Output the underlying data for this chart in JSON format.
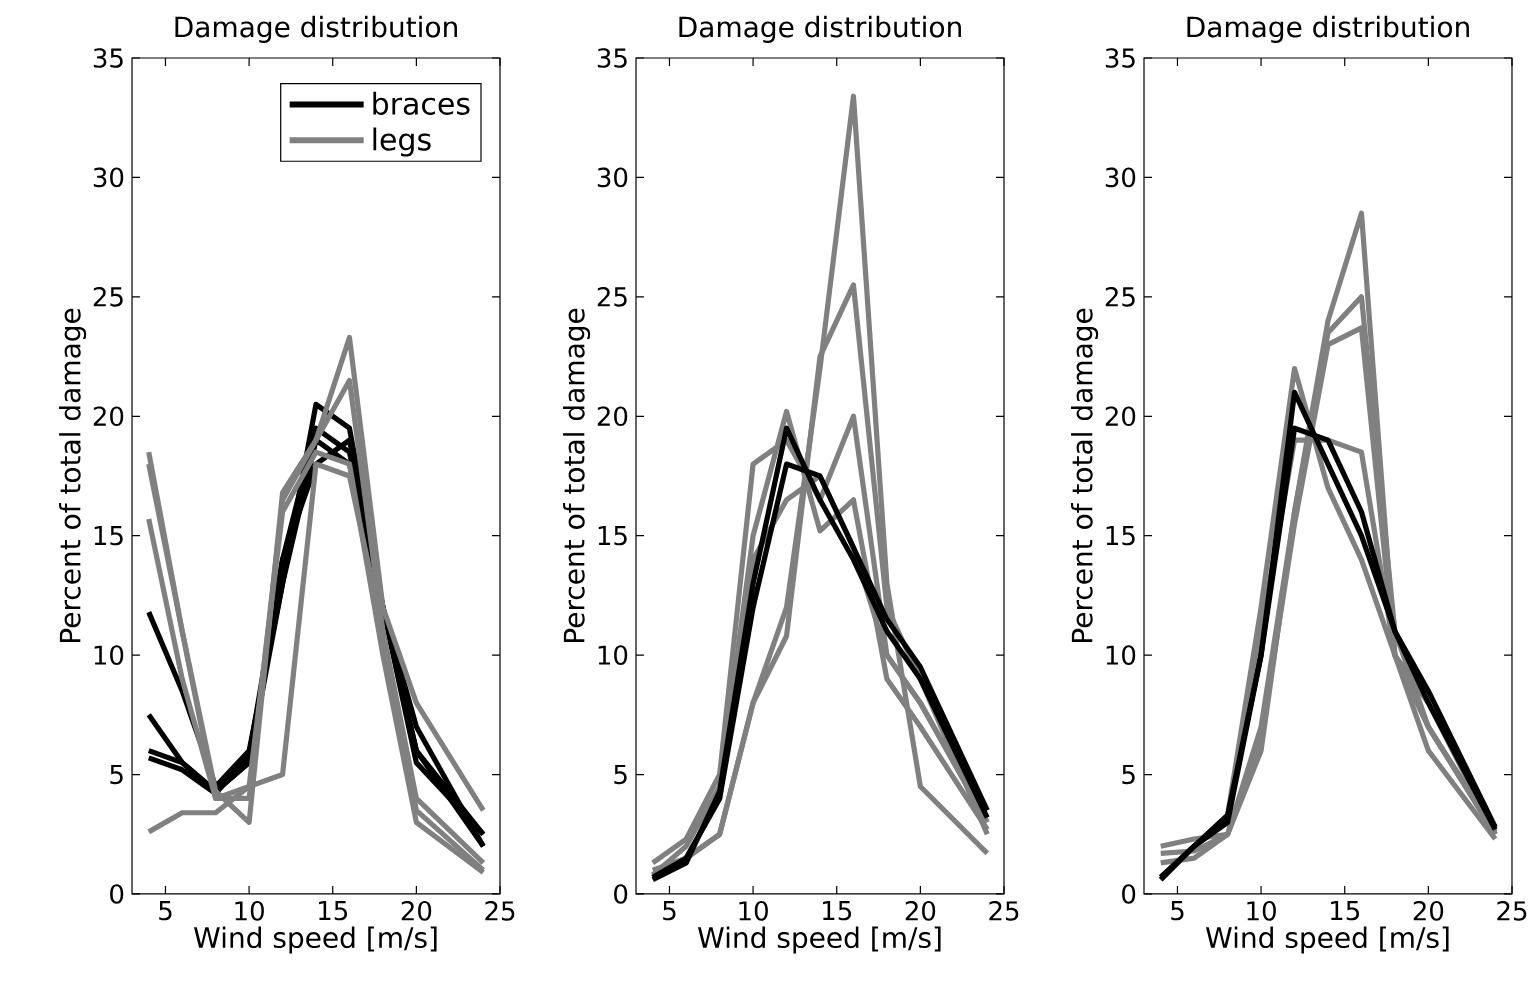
{
  "chart_data": [
    {
      "type": "line",
      "title": "Damage distribution",
      "xlabel": "Wind speed [m/s]",
      "ylabel": "Percent of total damage",
      "x": [
        4,
        6,
        8,
        10,
        12,
        14,
        16,
        18,
        20,
        24
      ],
      "xlim": [
        3,
        25
      ],
      "ylim": [
        0,
        35
      ],
      "xticks": [
        5,
        10,
        15,
        20,
        25
      ],
      "yticks": [
        0,
        5,
        10,
        15,
        20,
        25,
        30,
        35
      ],
      "legend": "top right",
      "grid": false,
      "marker": "none",
      "line_style": "solid",
      "series": [
        {
          "name": "braces",
          "color": "#000000",
          "values": [
            11.8,
            8.5,
            4.5,
            6,
            13,
            20.5,
            19.5,
            12,
            6,
            2
          ]
        },
        {
          "color": "#000000",
          "values": [
            7.5,
            5.5,
            4.3,
            5.5,
            13,
            19,
            18,
            12,
            5.5,
            2.5
          ]
        },
        {
          "color": "#000000",
          "values": [
            6,
            5.5,
            4.3,
            5.5,
            14,
            19.5,
            18.5,
            12,
            6,
            2.5
          ]
        },
        {
          "color": "#000000",
          "values": [
            5.7,
            5.2,
            4.2,
            5.8,
            14,
            18,
            19,
            12,
            7,
            2
          ]
        },
        {
          "name": "legs",
          "color": "#808080",
          "values": [
            18.5,
            11,
            4,
            4,
            16.5,
            19,
            23.3,
            12,
            8,
            3.5
          ]
        },
        {
          "color": "#808080",
          "values": [
            18,
            11,
            4.3,
            3,
            16.8,
            19,
            21.5,
            11,
            3.5,
            1
          ]
        },
        {
          "color": "#808080",
          "values": [
            15.7,
            9,
            4,
            4.5,
            16,
            18.5,
            18,
            10,
            3,
            0.9
          ]
        },
        {
          "color": "#808080",
          "values": [
            2.6,
            3.4,
            3.4,
            4.5,
            5,
            18,
            17.5,
            11,
            4,
            1.3
          ]
        }
      ]
    },
    {
      "type": "line",
      "title": "Damage distribution",
      "xlabel": "Wind speed [m/s]",
      "ylabel": "Percent of total damage",
      "x": [
        4,
        6,
        8,
        10,
        12,
        14,
        16,
        18,
        20,
        24
      ],
      "xlim": [
        3,
        25
      ],
      "ylim": [
        0,
        35
      ],
      "xticks": [
        5,
        10,
        15,
        20,
        25
      ],
      "yticks": [
        0,
        5,
        10,
        15,
        20,
        25,
        30,
        35
      ],
      "grid": false,
      "marker": "none",
      "line_style": "solid",
      "series": [
        {
          "color": "#808080",
          "values": [
            1,
            1.5,
            2.5,
            8,
            12,
            22,
            33.4,
            13,
            4.5,
            1.7
          ]
        },
        {
          "color": "#808080",
          "values": [
            0.8,
            1.5,
            2.5,
            8,
            10.8,
            22.5,
            25.5,
            12,
            9,
            2.5
          ]
        },
        {
          "color": "#808080",
          "values": [
            1.3,
            2.3,
            5,
            18,
            19,
            16.5,
            20,
            10,
            8,
            3
          ]
        },
        {
          "color": "#808080",
          "values": [
            0.8,
            2,
            4.5,
            15,
            20.2,
            15.2,
            16.5,
            9,
            7,
            2.7
          ]
        },
        {
          "color": "#808080",
          "values": [
            0.7,
            1.5,
            4,
            14,
            16.5,
            17.5,
            14.5,
            10,
            8,
            3
          ]
        },
        {
          "color": "#000000",
          "values": [
            0.7,
            1.5,
            4,
            12,
            18,
            17.5,
            14.5,
            11.5,
            9.5,
            3.5
          ]
        },
        {
          "color": "#000000",
          "values": [
            0.6,
            1.3,
            4.3,
            13,
            19.5,
            16.5,
            14,
            11,
            9,
            3.2
          ]
        }
      ]
    },
    {
      "type": "line",
      "title": "Damage distribution",
      "xlabel": "Wind speed [m/s]",
      "ylabel": "Percent of total damage",
      "x": [
        4,
        6,
        8,
        10,
        12,
        14,
        16,
        18,
        20,
        24
      ],
      "xlim": [
        3,
        25
      ],
      "ylim": [
        0,
        35
      ],
      "xticks": [
        5,
        10,
        15,
        20,
        25
      ],
      "yticks": [
        0,
        5,
        10,
        15,
        20,
        25,
        30,
        35
      ],
      "grid": false,
      "marker": "none",
      "line_style": "solid",
      "series": [
        {
          "color": "#808080",
          "values": [
            2,
            2.3,
            2.5,
            6,
            16,
            24,
            28.5,
            10,
            6,
            2.3
          ]
        },
        {
          "color": "#808080",
          "values": [
            1.7,
            1.8,
            2.5,
            7,
            16,
            23.5,
            25,
            11,
            7,
            2.5
          ]
        },
        {
          "color": "#808080",
          "values": [
            1.3,
            1.5,
            2.5,
            6.5,
            15.5,
            23,
            23.7,
            10,
            7,
            2.5
          ]
        },
        {
          "color": "#808080",
          "values": [
            0.7,
            2,
            3.3,
            12,
            22,
            17,
            14,
            10,
            8,
            2.5
          ]
        },
        {
          "color": "#808080",
          "values": [
            0.6,
            2,
            3,
            11,
            19,
            19,
            18.5,
            10,
            7,
            2.6
          ]
        },
        {
          "color": "#000000",
          "values": [
            0.6,
            2,
            3.3,
            10,
            19.5,
            19,
            16,
            11,
            8.5,
            2.8
          ]
        },
        {
          "color": "#000000",
          "values": [
            0.7,
            2,
            3,
            10,
            21,
            18,
            15,
            11,
            8,
            2.7
          ]
        }
      ]
    }
  ]
}
